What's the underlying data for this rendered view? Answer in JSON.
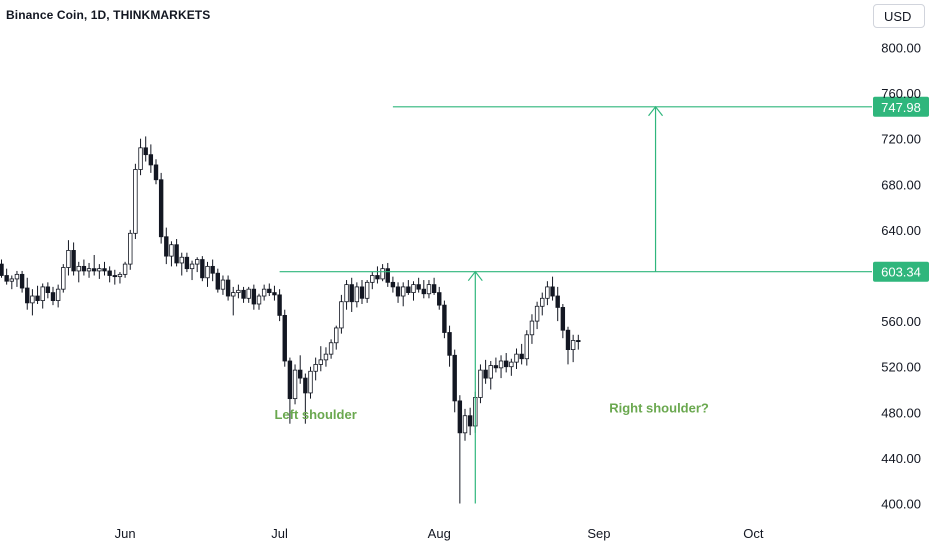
{
  "header": {
    "title": "Binance Coin, 1D, THINKMARKETS",
    "currency": "USD"
  },
  "colors": {
    "up": "#26a69a",
    "down": "#131722",
    "line": "#2fb67c",
    "annotation_text": "#6aa84f",
    "badge": "#2fb67c"
  },
  "chart_data": {
    "type": "candlestick",
    "title": "Binance Coin, 1D, THINKMARKETS",
    "currency": "USD",
    "ylim": [
      385,
      820
    ],
    "y_ticks": [
      {
        "value": 800,
        "label": "800.00"
      },
      {
        "value": 760,
        "label": "760.00"
      },
      {
        "value": 720,
        "label": "720.00"
      },
      {
        "value": 680,
        "label": "680.00"
      },
      {
        "value": 640,
        "label": "640.00"
      },
      {
        "value": 560,
        "label": "560.00"
      },
      {
        "value": 520,
        "label": "520.00"
      },
      {
        "value": 480,
        "label": "480.00"
      },
      {
        "value": 440,
        "label": "440.00"
      },
      {
        "value": 400,
        "label": "400.00"
      }
    ],
    "x_ticks": [
      {
        "label": "Jun",
        "index": 24
      },
      {
        "label": "Jul",
        "index": 54
      },
      {
        "label": "Aug",
        "index": 85
      },
      {
        "label": "Sep",
        "index": 116
      },
      {
        "label": "Oct",
        "index": 146
      }
    ],
    "x_range": [
      0,
      181
    ],
    "levels": [
      {
        "label": "747.98",
        "value": 747.98,
        "from_index": 76
      },
      {
        "label": "603.34",
        "value": 603.34,
        "from_index": 54
      }
    ],
    "arrows": [
      {
        "index": 92,
        "from": 400,
        "to": 603.34
      },
      {
        "index": 127,
        "from": 603.34,
        "to": 747.98
      }
    ],
    "annotations": [
      {
        "text": "Left shoulder",
        "index": 53,
        "value": 474
      },
      {
        "text": "Right shoulder?",
        "index": 118,
        "value": 480
      }
    ],
    "candles": [
      [
        0,
        610,
        614,
        598,
        600
      ],
      [
        1,
        600,
        606,
        592,
        595
      ],
      [
        2,
        595,
        600,
        588,
        597
      ],
      [
        3,
        597,
        604,
        590,
        601
      ],
      [
        4,
        601,
        604,
        585,
        589
      ],
      [
        5,
        589,
        598,
        570,
        576
      ],
      [
        6,
        576,
        588,
        565,
        582
      ],
      [
        7,
        582,
        591,
        575,
        578
      ],
      [
        8,
        578,
        593,
        571,
        590
      ],
      [
        9,
        590,
        594,
        580,
        585
      ],
      [
        10,
        585,
        590,
        574,
        578
      ],
      [
        11,
        578,
        592,
        572,
        588
      ],
      [
        12,
        588,
        610,
        585,
        607
      ],
      [
        13,
        607,
        631,
        600,
        622
      ],
      [
        14,
        622,
        629,
        600,
        604
      ],
      [
        15,
        604,
        612,
        594,
        608
      ],
      [
        16,
        608,
        614,
        600,
        604
      ],
      [
        17,
        604,
        611,
        598,
        606
      ],
      [
        18,
        606,
        618,
        600,
        604
      ],
      [
        19,
        604,
        610,
        597,
        606
      ],
      [
        20,
        606,
        612,
        600,
        604
      ],
      [
        21,
        604,
        608,
        594,
        600
      ],
      [
        22,
        600,
        605,
        592,
        599
      ],
      [
        23,
        599,
        603,
        593,
        601
      ],
      [
        24,
        601,
        612,
        598,
        610
      ],
      [
        25,
        610,
        640,
        605,
        637
      ],
      [
        26,
        637,
        698,
        632,
        693
      ],
      [
        27,
        693,
        720,
        688,
        712
      ],
      [
        28,
        712,
        722,
        700,
        706
      ],
      [
        29,
        706,
        715,
        690,
        697
      ],
      [
        30,
        697,
        702,
        680,
        684
      ],
      [
        31,
        684,
        690,
        628,
        634
      ],
      [
        32,
        634,
        642,
        610,
        617
      ],
      [
        33,
        617,
        630,
        608,
        627
      ],
      [
        34,
        627,
        632,
        608,
        611
      ],
      [
        35,
        611,
        620,
        600,
        616
      ],
      [
        36,
        616,
        620,
        603,
        606
      ],
      [
        37,
        606,
        613,
        596,
        610
      ],
      [
        38,
        610,
        616,
        603,
        614
      ],
      [
        39,
        614,
        617,
        595,
        598
      ],
      [
        40,
        598,
        612,
        590,
        608
      ],
      [
        41,
        608,
        614,
        595,
        602
      ],
      [
        42,
        602,
        606,
        585,
        588
      ],
      [
        43,
        588,
        600,
        583,
        596
      ],
      [
        44,
        596,
        600,
        578,
        582
      ],
      [
        45,
        582,
        590,
        565,
        585
      ],
      [
        46,
        585,
        592,
        580,
        587
      ],
      [
        47,
        587,
        590,
        576,
        580
      ],
      [
        48,
        580,
        590,
        576,
        588
      ],
      [
        49,
        588,
        592,
        570,
        575
      ],
      [
        50,
        575,
        584,
        570,
        582
      ],
      [
        51,
        582,
        592,
        578,
        588
      ],
      [
        52,
        588,
        593,
        582,
        585
      ],
      [
        53,
        585,
        591,
        578,
        583
      ],
      [
        54,
        583,
        588,
        560,
        565
      ],
      [
        55,
        565,
        570,
        520,
        525
      ],
      [
        56,
        525,
        528,
        470,
        492
      ],
      [
        57,
        492,
        522,
        487,
        517
      ],
      [
        58,
        517,
        530,
        505,
        510
      ],
      [
        59,
        510,
        514,
        470,
        497
      ],
      [
        60,
        497,
        520,
        492,
        516
      ],
      [
        61,
        516,
        528,
        508,
        522
      ],
      [
        62,
        522,
        538,
        516,
        526
      ],
      [
        63,
        526,
        537,
        520,
        531
      ],
      [
        64,
        531,
        544,
        527,
        541
      ],
      [
        65,
        541,
        556,
        535,
        554
      ],
      [
        66,
        554,
        583,
        549,
        577
      ],
      [
        67,
        577,
        596,
        570,
        592
      ],
      [
        68,
        592,
        598,
        568,
        577
      ],
      [
        69,
        577,
        594,
        572,
        590
      ],
      [
        70,
        590,
        596,
        575,
        580
      ],
      [
        71,
        580,
        596,
        576,
        594
      ],
      [
        72,
        594,
        603,
        588,
        600
      ],
      [
        73,
        600,
        608,
        593,
        597
      ],
      [
        74,
        597,
        610,
        595,
        606
      ],
      [
        75,
        606,
        611,
        590,
        594
      ],
      [
        76,
        594,
        599,
        585,
        590
      ],
      [
        77,
        590,
        594,
        576,
        582
      ],
      [
        78,
        582,
        594,
        573,
        590
      ],
      [
        79,
        590,
        596,
        583,
        585
      ],
      [
        80,
        585,
        595,
        578,
        592
      ],
      [
        81,
        592,
        598,
        585,
        588
      ],
      [
        82,
        588,
        596,
        580,
        584
      ],
      [
        83,
        584,
        596,
        580,
        592
      ],
      [
        84,
        592,
        598,
        583,
        585
      ],
      [
        85,
        585,
        590,
        570,
        574
      ],
      [
        86,
        574,
        578,
        545,
        550
      ],
      [
        87,
        550,
        556,
        520,
        530
      ],
      [
        88,
        530,
        535,
        480,
        490
      ],
      [
        89,
        490,
        495,
        400,
        462
      ],
      [
        90,
        462,
        483,
        455,
        477
      ],
      [
        91,
        477,
        484,
        460,
        468
      ],
      [
        92,
        468,
        498,
        462,
        493
      ],
      [
        93,
        493,
        522,
        488,
        517
      ],
      [
        94,
        517,
        526,
        505,
        510
      ],
      [
        95,
        510,
        525,
        500,
        521
      ],
      [
        96,
        521,
        528,
        515,
        519
      ],
      [
        97,
        519,
        530,
        510,
        525
      ],
      [
        98,
        525,
        532,
        515,
        520
      ],
      [
        99,
        520,
        527,
        512,
        524
      ],
      [
        100,
        524,
        536,
        518,
        531
      ],
      [
        101,
        531,
        540,
        522,
        527
      ],
      [
        102,
        527,
        552,
        521,
        548
      ],
      [
        103,
        548,
        566,
        540,
        560
      ],
      [
        104,
        560,
        577,
        553,
        573
      ],
      [
        105,
        573,
        585,
        565,
        580
      ],
      [
        106,
        580,
        595,
        574,
        590
      ],
      [
        107,
        590,
        599,
        578,
        582
      ],
      [
        108,
        582,
        590,
        560,
        572
      ],
      [
        109,
        572,
        575,
        545,
        552
      ],
      [
        110,
        552,
        555,
        522,
        535
      ],
      [
        111,
        535,
        548,
        524,
        543
      ],
      [
        112,
        543,
        548,
        535,
        542
      ]
    ]
  }
}
